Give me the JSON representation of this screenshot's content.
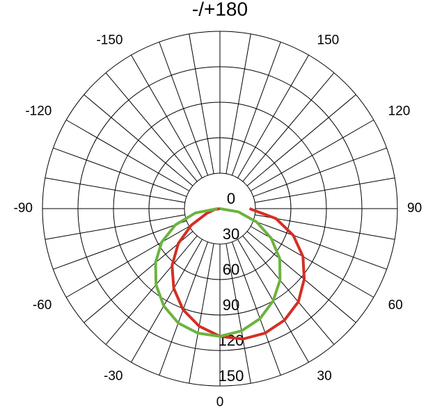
{
  "chart_data": {
    "type": "polar",
    "x": [
      -90,
      -80,
      -70,
      -60,
      -50,
      -40,
      -30,
      -20,
      -10,
      0,
      10,
      20,
      30,
      40,
      50,
      60,
      70,
      80,
      90
    ],
    "series": [
      {
        "color": "#d42f25",
        "values": [
          0,
          5,
          12,
          28,
          46,
          63,
          78,
          91,
          101,
          108,
          112,
          112,
          109,
          103,
          93,
          81,
          66,
          48,
          25
        ]
      },
      {
        "color": "#6cb33f",
        "values": [
          2,
          21,
          40,
          57,
          71,
          84,
          95,
          103,
          107,
          108,
          105,
          99,
          90,
          79,
          66,
          50,
          33,
          16,
          0
        ]
      }
    ],
    "rlim": [
      0,
      150
    ],
    "rticks": [
      0,
      30,
      60,
      90,
      120,
      150
    ],
    "xticks": [
      0,
      30,
      60,
      90,
      120,
      150,
      {
        "value": 180,
        "label": "-/+180"
      },
      -150,
      -120,
      -90,
      -60,
      -30
    ],
    "grid": true
  }
}
